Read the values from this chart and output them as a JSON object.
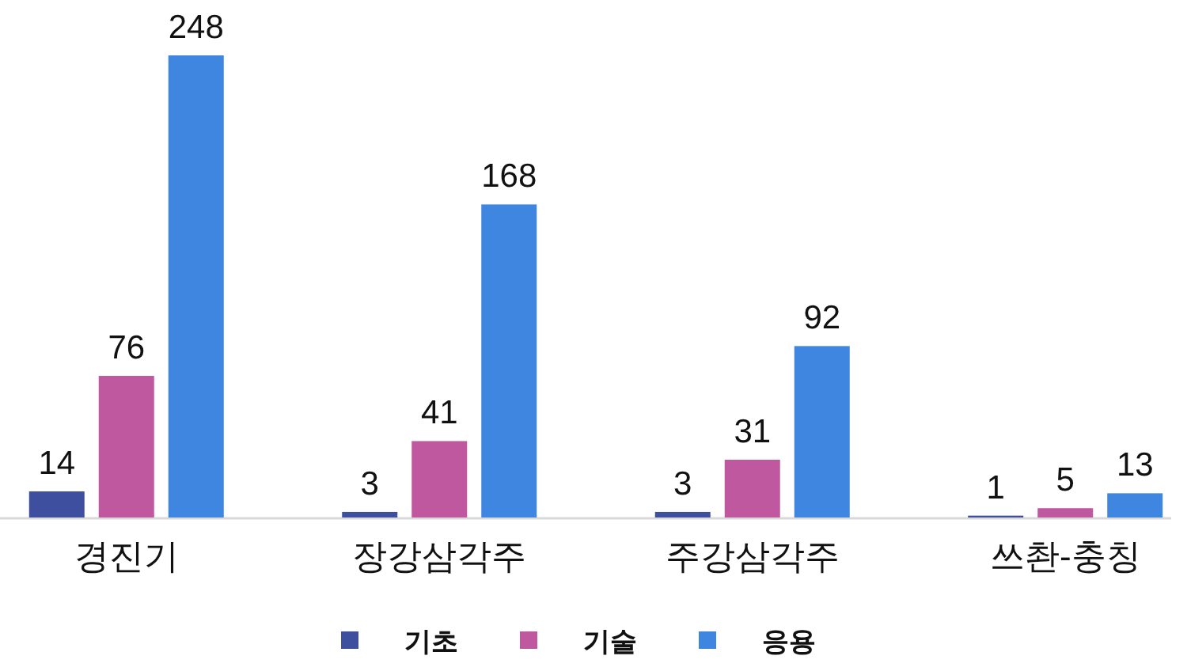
{
  "chart_data": {
    "type": "bar",
    "categories": [
      "경진기",
      "장강삼각주",
      "주강삼각주",
      "쓰촨-충칭"
    ],
    "series": [
      {
        "name": "기초",
        "color": "#3f4fa0",
        "values": [
          14,
          3,
          3,
          1
        ]
      },
      {
        "name": "기술",
        "color": "#c0589f",
        "values": [
          76,
          41,
          31,
          5
        ]
      },
      {
        "name": "응용",
        "color": "#3f86e0",
        "values": [
          248,
          168,
          92,
          13
        ]
      }
    ],
    "data_labels": true,
    "legend": "bottom",
    "grid": false
  }
}
